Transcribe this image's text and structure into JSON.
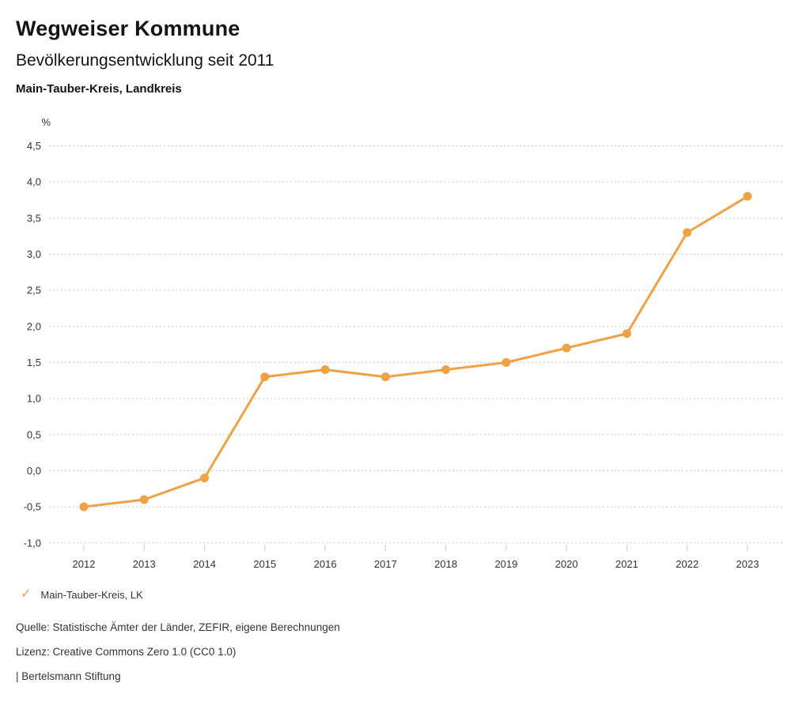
{
  "header": {
    "title": "Wegweiser Kommune",
    "subtitle": "Bevölkerungsentwicklung seit 2011",
    "region": "Main-Tauber-Kreis, Landkreis"
  },
  "chart_data": {
    "type": "line",
    "title": "Bevölkerungsentwicklung seit 2011",
    "subtitle_region": "Main-Tauber-Kreis, Landkreis",
    "unit_label": "%",
    "xlabel": "",
    "ylabel": "%",
    "categories": [
      "2012",
      "2013",
      "2014",
      "2015",
      "2016",
      "2017",
      "2018",
      "2019",
      "2020",
      "2021",
      "2022",
      "2023"
    ],
    "series": [
      {
        "name": "Main-Tauber-Kreis, LK",
        "values": [
          -0.5,
          -0.4,
          -0.1,
          1.3,
          1.4,
          1.3,
          1.4,
          1.5,
          1.7,
          1.9,
          3.3,
          3.8
        ],
        "color": "#F0A143"
      }
    ],
    "ylim": [
      -1.0,
      4.5
    ],
    "ytick_step": 0.5,
    "ytick_labels": [
      "4,5",
      "4,0",
      "3,5",
      "3,0",
      "2,5",
      "2,0",
      "1,5",
      "1,0",
      "0,5",
      "0,0",
      "-0,5",
      "-1,0"
    ],
    "grid": "horizontal-dotted",
    "legend_position": "bottom-left",
    "colors": {
      "line": "#F0A143",
      "grid": "#c9c9c9",
      "tick": "#c9c9c9",
      "axis_text": "#333333"
    }
  },
  "legend": {
    "check_icon": "✓",
    "label": "Main-Tauber-Kreis, LK"
  },
  "footer": {
    "source": "Quelle: Statistische Ämter der Länder, ZEFIR, eigene Berechnungen",
    "license": "Lizenz: Creative Commons Zero 1.0 (CC0 1.0)",
    "attribution": "| Bertelsmann Stiftung"
  }
}
